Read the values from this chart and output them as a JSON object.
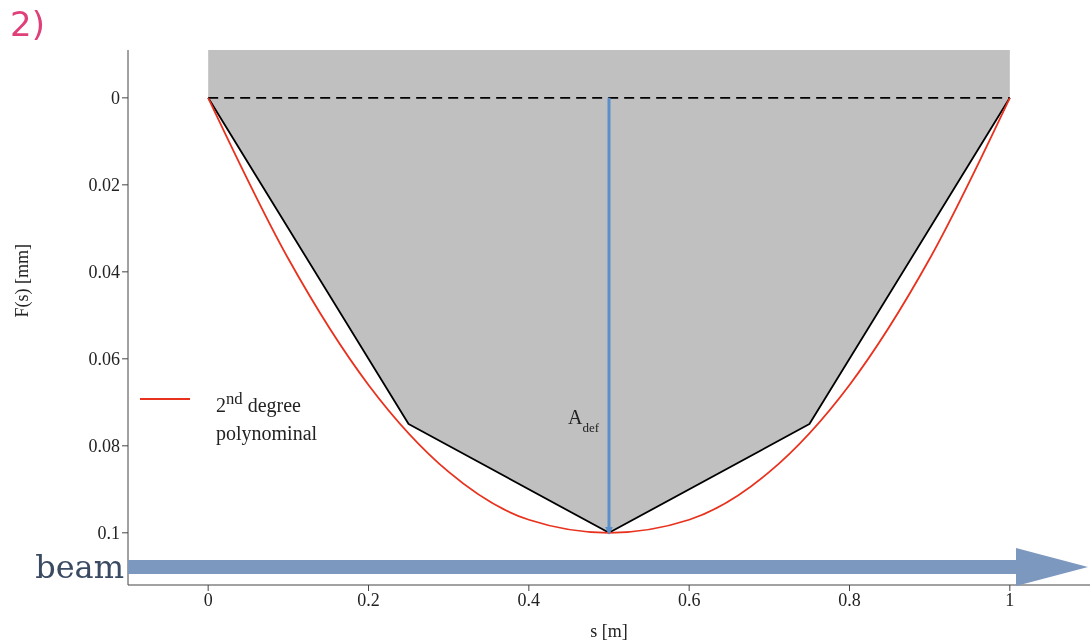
{
  "chart_data": {
    "type": "line",
    "xlabel": "s [m]",
    "ylabel": "F(s) [mm]",
    "xlim": [
      -0.1,
      1.1
    ],
    "ylim": [
      0.112,
      -0.011
    ],
    "xticks": [
      0,
      0.2,
      0.4,
      0.6,
      0.8,
      1
    ],
    "yticks": [
      0,
      0.02,
      0.04,
      0.06,
      0.08,
      0.1
    ],
    "grid": false,
    "legend": "left",
    "marker": "none",
    "series": [
      {
        "color": "#000000",
        "x": [
          0,
          0.25,
          0.5,
          0.75,
          1
        ],
        "values": [
          0,
          0.075,
          0.1,
          0.075,
          0
        ]
      },
      {
        "color": "#000000",
        "line_style": "dashed",
        "x": [
          0,
          1
        ],
        "values": [
          0,
          0
        ]
      },
      {
        "name": "2$^{nd}$ degree polynominal",
        "color": "#e8321e",
        "x": [
          0,
          0.1,
          0.2,
          0.3,
          0.4,
          0.5,
          0.6,
          0.7,
          0.8,
          0.9,
          1
        ],
        "values": [
          0,
          0.037,
          0.066,
          0.086,
          0.097,
          0.1,
          0.097,
          0.086,
          0.066,
          0.037,
          0
        ]
      },
      {
        "color": "#5b8fc9",
        "x": [
          0.5,
          0.5
        ],
        "values": [
          0,
          0.1
        ]
      }
    ],
    "annotations": [
      {
        "text": "A$_{def}$",
        "x": 0.5,
        "y": 0.075
      },
      "2)",
      "beam"
    ]
  }
}
